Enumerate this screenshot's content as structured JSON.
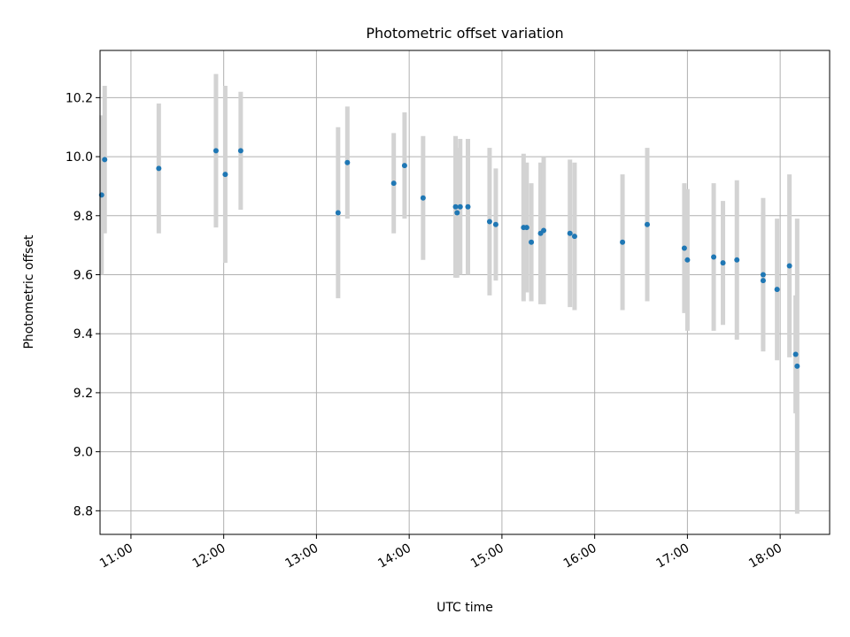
{
  "chart_data": {
    "type": "scatter",
    "title": "Photometric offset variation",
    "xlabel": "UTC time",
    "ylabel": "Photometric offset",
    "xlim": [
      "10:40",
      "18:32"
    ],
    "ylim": [
      8.72,
      10.36
    ],
    "xticks": [
      "11:00",
      "12:00",
      "13:00",
      "14:00",
      "15:00",
      "16:00",
      "17:00",
      "18:00"
    ],
    "yticks": [
      "8.8",
      "9.0",
      "9.2",
      "9.4",
      "9.6",
      "9.8",
      "10.0",
      "10.2"
    ],
    "grid": true,
    "colors": {
      "marker": "#1f77b4",
      "errorbar": "#d3d3d3",
      "grid": "#b0b0b0"
    },
    "series": [
      {
        "points": [
          {
            "x": "10:41",
            "y": 9.87,
            "err": 0.27
          },
          {
            "x": "10:43",
            "y": 9.99,
            "err": 0.25
          },
          {
            "x": "11:18",
            "y": 9.96,
            "err": 0.22
          },
          {
            "x": "11:55",
            "y": 10.02,
            "err": 0.26
          },
          {
            "x": "12:01",
            "y": 9.94,
            "err": 0.3
          },
          {
            "x": "12:11",
            "y": 10.02,
            "err": 0.2
          },
          {
            "x": "13:14",
            "y": 9.81,
            "err": 0.29
          },
          {
            "x": "13:20",
            "y": 9.98,
            "err": 0.19
          },
          {
            "x": "13:50",
            "y": 9.91,
            "err": 0.17
          },
          {
            "x": "13:57",
            "y": 9.97,
            "err": 0.18
          },
          {
            "x": "14:09",
            "y": 9.86,
            "err": 0.21
          },
          {
            "x": "14:30",
            "y": 9.83,
            "err": 0.24
          },
          {
            "x": "14:31",
            "y": 9.81,
            "err": 0.22
          },
          {
            "x": "14:33",
            "y": 9.83,
            "err": 0.23
          },
          {
            "x": "14:38",
            "y": 9.83,
            "err": 0.23
          },
          {
            "x": "14:52",
            "y": 9.78,
            "err": 0.25
          },
          {
            "x": "14:56",
            "y": 9.77,
            "err": 0.19
          },
          {
            "x": "15:14",
            "y": 9.76,
            "err": 0.25
          },
          {
            "x": "15:16",
            "y": 9.76,
            "err": 0.22
          },
          {
            "x": "15:19",
            "y": 9.71,
            "err": 0.2
          },
          {
            "x": "15:25",
            "y": 9.74,
            "err": 0.24
          },
          {
            "x": "15:27",
            "y": 9.75,
            "err": 0.25
          },
          {
            "x": "15:44",
            "y": 9.74,
            "err": 0.25
          },
          {
            "x": "15:47",
            "y": 9.73,
            "err": 0.25
          },
          {
            "x": "16:18",
            "y": 9.71,
            "err": 0.23
          },
          {
            "x": "16:34",
            "y": 9.77,
            "err": 0.26
          },
          {
            "x": "16:58",
            "y": 9.69,
            "err": 0.22
          },
          {
            "x": "17:00",
            "y": 9.65,
            "err": 0.24
          },
          {
            "x": "17:17",
            "y": 9.66,
            "err": 0.25
          },
          {
            "x": "17:23",
            "y": 9.64,
            "err": 0.21
          },
          {
            "x": "17:32",
            "y": 9.65,
            "err": 0.27
          },
          {
            "x": "17:49",
            "y": 9.6,
            "err": 0.26
          },
          {
            "x": "17:49",
            "y": 9.58,
            "err": 0.23
          },
          {
            "x": "17:58",
            "y": 9.55,
            "err": 0.24
          },
          {
            "x": "18:06",
            "y": 9.63,
            "err": 0.31
          },
          {
            "x": "18:10",
            "y": 9.33,
            "err": 0.2
          },
          {
            "x": "18:11",
            "y": 9.29,
            "err": 0.5
          }
        ]
      }
    ]
  }
}
